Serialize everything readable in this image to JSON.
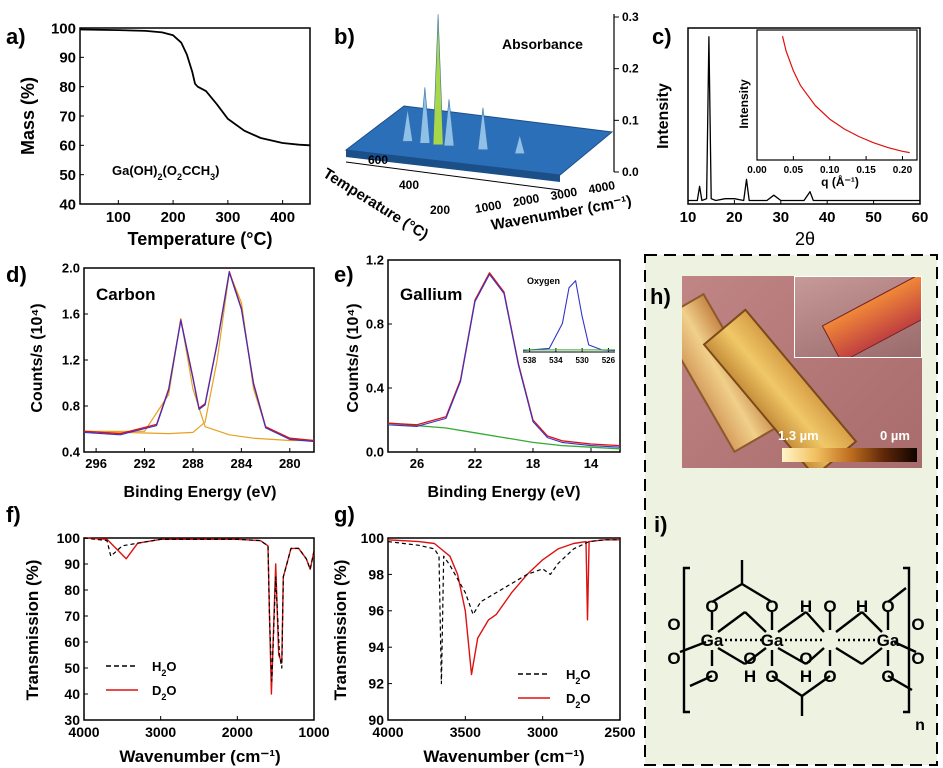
{
  "panel_letters": {
    "a": "a)",
    "b": "b)",
    "c": "c)",
    "d": "d)",
    "e": "e)",
    "f": "f)",
    "g": "g)",
    "h": "h)",
    "i": "i)"
  },
  "colors": {
    "fit_blue": "#3333cc",
    "data_red": "#dd1111",
    "fit_orange": "#e8a020",
    "baseline_green": "#33aa33",
    "panel_bg": "#eef2e0",
    "surface_blue": "#2a6fb8"
  },
  "chart_data": [
    {
      "id": "a",
      "type": "line",
      "xlabel": "Temperature (°C)",
      "ylabel": "Mass (%)",
      "xlim": [
        30,
        450
      ],
      "ylim": [
        40,
        100
      ],
      "xticks": [
        "100",
        "200",
        "300",
        "400"
      ],
      "yticks": [
        "40",
        "50",
        "60",
        "70",
        "80",
        "90",
        "100"
      ],
      "annotation": "Ga(OH)2(O2CCH3)",
      "series": [
        {
          "x": [
            30,
            100,
            150,
            180,
            200,
            215,
            225,
            235,
            240,
            245,
            260,
            280,
            300,
            330,
            360,
            400,
            430,
            450
          ],
          "y": [
            99.5,
            99.3,
            99,
            98.5,
            97.5,
            95,
            91,
            85,
            81,
            80,
            78.5,
            74,
            69,
            65,
            62.5,
            60.8,
            60.2,
            60
          ]
        }
      ]
    },
    {
      "id": "b",
      "type": "area",
      "xlabel": "Wavenumber (cm⁻¹)",
      "ylabel": "Temperature (°C)",
      "zlabel": "Absorbance",
      "xticks": [
        "1000",
        "2000",
        "3000",
        "4000"
      ],
      "yticks": [
        "200",
        "400",
        "600"
      ],
      "zticks": [
        "0.0",
        "0.1",
        "0.2",
        "0.3"
      ],
      "zlim": [
        0,
        0.3
      ],
      "peaks": [
        {
          "wavenumber": 1050,
          "absorbance": 0.07
        },
        {
          "wavenumber": 1350,
          "absorbance": 0.12
        },
        {
          "wavenumber": 1580,
          "absorbance": 0.28
        },
        {
          "wavenumber": 1770,
          "absorbance": 0.1
        },
        {
          "wavenumber": 2360,
          "absorbance": 0.09
        },
        {
          "wavenumber": 3000,
          "absorbance": 0.04
        }
      ]
    },
    {
      "id": "c",
      "type": "line",
      "xlabel": "2θ",
      "ylabel": "Intensity",
      "xlim": [
        10,
        60
      ],
      "xticks": [
        "10",
        "20",
        "30",
        "40",
        "50",
        "60"
      ],
      "series": [
        {
          "x": [
            10,
            12,
            12.5,
            13,
            14,
            14.5,
            15,
            16,
            18,
            20,
            22,
            22.6,
            23.2,
            25,
            27,
            28.5,
            30,
            32,
            35,
            36.3,
            37,
            40,
            45,
            50,
            55,
            60
          ],
          "y": [
            0.02,
            0.02,
            0.1,
            0.02,
            0.03,
            0.95,
            0.03,
            0.02,
            0.03,
            0.03,
            0.02,
            0.14,
            0.02,
            0.02,
            0.02,
            0.05,
            0.02,
            0.02,
            0.02,
            0.07,
            0.02,
            0.02,
            0.02,
            0.02,
            0.02,
            0.02
          ]
        }
      ],
      "inset": {
        "xlabel": "q (Å⁻¹)",
        "ylabel": "Intensity",
        "xlim": [
          0,
          0.22
        ],
        "xticks": [
          "0.00",
          "0.05",
          "0.10",
          "0.15",
          "0.20"
        ],
        "series": [
          {
            "x": [
              0.035,
              0.04,
              0.05,
              0.06,
              0.08,
              0.1,
              0.12,
              0.14,
              0.16,
              0.18,
              0.2,
              0.21
            ],
            "y": [
              1.0,
              0.88,
              0.72,
              0.6,
              0.44,
              0.33,
              0.25,
              0.19,
              0.14,
              0.1,
              0.07,
              0.06
            ]
          }
        ]
      }
    },
    {
      "id": "d",
      "type": "line",
      "xlabel": "Binding Energy (eV)",
      "ylabel": "Counts/s (10⁴)",
      "title": "Carbon",
      "xlim": [
        297,
        278
      ],
      "ylim": [
        0.4,
        2.0
      ],
      "xticks": [
        "296",
        "292",
        "288",
        "284",
        "280"
      ],
      "yticks": [
        "0.4",
        "0.8",
        "1.2",
        "1.6",
        "2.0"
      ],
      "series": [
        {
          "x": [
            297,
            294,
            291,
            290,
            289,
            288,
            287.5,
            287,
            286,
            285,
            284,
            283,
            282,
            280,
            278
          ],
          "y": [
            0.58,
            0.56,
            0.64,
            0.95,
            1.55,
            1.05,
            0.78,
            0.82,
            1.35,
            1.97,
            1.65,
            1.0,
            0.62,
            0.52,
            0.5
          ]
        },
        {
          "x": [
            297,
            292,
            290,
            289,
            288,
            287,
            285,
            283,
            280,
            278
          ],
          "y": [
            0.58,
            0.58,
            0.9,
            1.56,
            0.95,
            0.62,
            0.55,
            0.52,
            0.5,
            0.5
          ]
        },
        {
          "x": [
            297,
            290,
            288,
            287,
            286,
            285,
            284,
            283,
            282,
            280,
            278
          ],
          "y": [
            0.58,
            0.56,
            0.57,
            0.66,
            1.2,
            1.96,
            1.7,
            0.95,
            0.62,
            0.51,
            0.5
          ]
        }
      ]
    },
    {
      "id": "e",
      "type": "line",
      "xlabel": "Binding Energy (eV)",
      "ylabel": "Counts/s (10⁴)",
      "title": "Gallium",
      "xlim": [
        28,
        12
      ],
      "ylim": [
        0.0,
        1.2
      ],
      "xticks": [
        "26",
        "22",
        "18",
        "14"
      ],
      "yticks": [
        "0.0",
        "0.4",
        "0.8",
        "1.2"
      ],
      "series": [
        {
          "x": [
            28,
            26,
            24,
            23,
            22,
            21,
            20,
            19,
            18,
            17,
            16,
            14,
            12
          ],
          "y": [
            0.18,
            0.17,
            0.22,
            0.45,
            0.95,
            1.12,
            1.0,
            0.55,
            0.2,
            0.1,
            0.07,
            0.05,
            0.04
          ]
        },
        {
          "x": [
            28,
            24,
            22,
            20,
            18,
            16,
            14,
            12
          ],
          "y": [
            0.18,
            0.15,
            0.12,
            0.09,
            0.06,
            0.04,
            0.03,
            0.02
          ]
        }
      ],
      "inset": {
        "title": "Oxygen",
        "xlim": [
          539,
          525
        ],
        "xticks": [
          "538",
          "534",
          "530",
          "526"
        ],
        "series": [
          {
            "x": [
              539,
              535,
              533,
              532,
              531,
              530,
              529,
              527,
              525
            ],
            "y": [
              0.02,
              0.05,
              0.4,
              0.9,
              1.0,
              0.5,
              0.1,
              0.03,
              0.02
            ]
          }
        ]
      }
    },
    {
      "id": "f",
      "type": "line",
      "xlabel": "Wavenumber (cm⁻¹)",
      "ylabel": "Transmission (%)",
      "xlim": [
        4000,
        1000
      ],
      "ylim": [
        30,
        100
      ],
      "xticks": [
        "4000",
        "3000",
        "2000",
        "1000"
      ],
      "yticks": [
        "30",
        "40",
        "50",
        "60",
        "70",
        "80",
        "90",
        "100"
      ],
      "legend": [
        "H2O",
        "D2O"
      ],
      "series": [
        {
          "name": "H2O",
          "x": [
            4000,
            3700,
            3650,
            3500,
            3000,
            2500,
            2000,
            1700,
            1600,
            1580,
            1550,
            1500,
            1450,
            1420,
            1400,
            1300,
            1200,
            1100,
            1050,
            1000
          ],
          "y": [
            100,
            99,
            93,
            97,
            99.5,
            99.5,
            99.5,
            99,
            97,
            70,
            45,
            85,
            55,
            50,
            85,
            96,
            96,
            92,
            88,
            95
          ]
        },
        {
          "name": "D2O",
          "x": [
            4000,
            3700,
            3450,
            3300,
            3000,
            2500,
            2000,
            1700,
            1600,
            1580,
            1555,
            1500,
            1460,
            1420,
            1400,
            1300,
            1200,
            1100,
            1050,
            1000
          ],
          "y": [
            100,
            99.5,
            92,
            98,
            99.5,
            99.5,
            99.5,
            99,
            97,
            70,
            40,
            90,
            55,
            52,
            85,
            96,
            96,
            92,
            88,
            95
          ]
        }
      ]
    },
    {
      "id": "g",
      "type": "line",
      "xlabel": "Wavenumber (cm⁻¹)",
      "ylabel": "Transmission (%)",
      "xlim": [
        4000,
        2500
      ],
      "ylim": [
        90,
        100
      ],
      "xticks": [
        "4000",
        "3500",
        "3000",
        "2500"
      ],
      "yticks": [
        "90",
        "92",
        "94",
        "96",
        "98",
        "100"
      ],
      "legend": [
        "H2O",
        "D2O"
      ],
      "series": [
        {
          "name": "H2O",
          "x": [
            4000,
            3800,
            3700,
            3670,
            3655,
            3640,
            3600,
            3500,
            3450,
            3400,
            3300,
            3200,
            3100,
            3000,
            2950,
            2900,
            2800,
            2700,
            2600,
            2500
          ],
          "y": [
            99.8,
            99.6,
            99.4,
            99,
            92,
            99,
            98.5,
            97,
            95.8,
            96.5,
            97,
            97.5,
            98,
            98.3,
            98,
            98.6,
            99.4,
            99.8,
            99.9,
            99.9
          ]
        },
        {
          "name": "D2O",
          "x": [
            4000,
            3800,
            3700,
            3600,
            3550,
            3500,
            3460,
            3420,
            3350,
            3300,
            3200,
            3100,
            3000,
            2900,
            2800,
            2720,
            2710,
            2700,
            2600,
            2500
          ],
          "y": [
            99.9,
            99.8,
            99.7,
            99,
            98,
            96,
            92.5,
            94.5,
            95.5,
            95.8,
            97,
            98,
            98.8,
            99.4,
            99.7,
            99.8,
            95.5,
            99.8,
            99.9,
            99.9
          ]
        }
      ]
    }
  ],
  "panel_h": {
    "scale_left": "1.3 µm",
    "scale_right": "0 µm"
  },
  "panel_i": {
    "atoms": {
      "ga": "Ga",
      "o": "O",
      "h": "H"
    },
    "subscript_n": "n"
  }
}
